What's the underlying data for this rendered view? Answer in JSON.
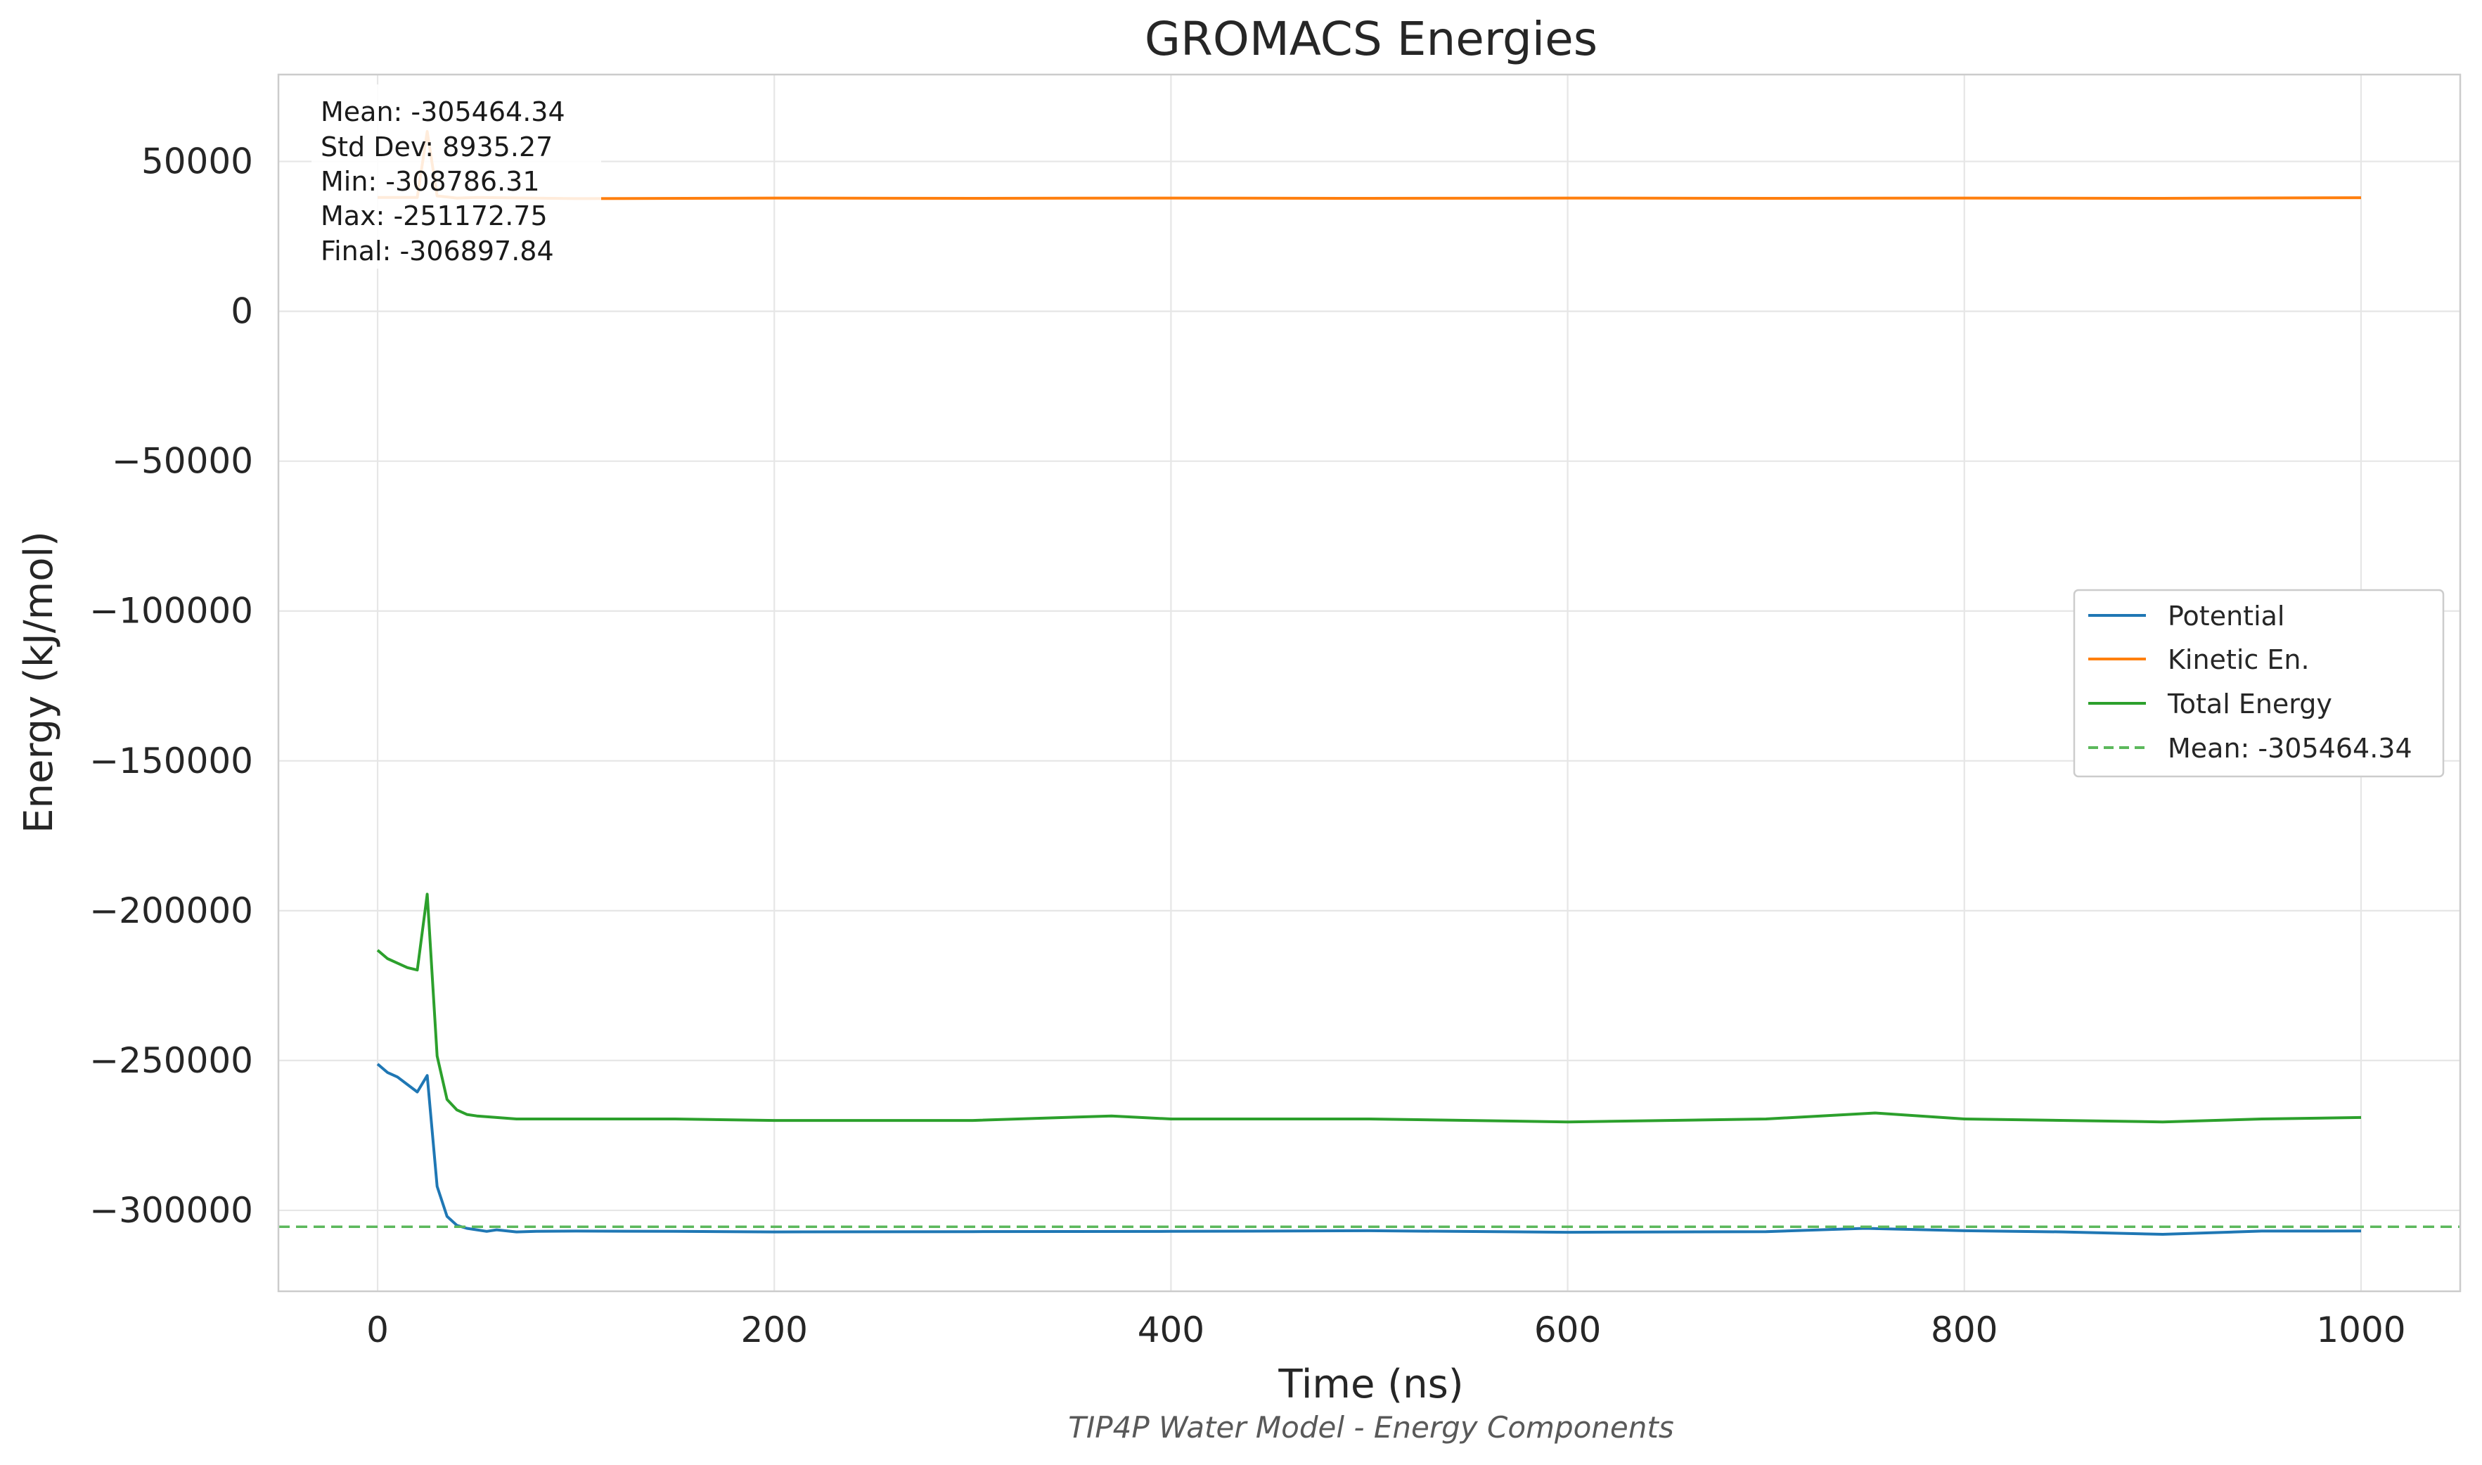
{
  "chart_data": {
    "type": "line",
    "title": "GROMACS Energies",
    "subtitle": "TIP4P Water Model - Energy Components",
    "xlabel": "Time (ns)",
    "ylabel": "Energy (kJ/mol)",
    "xlim": [
      -50,
      1050
    ],
    "ylim": [
      -327000,
      79000
    ],
    "x_ticks": [
      0,
      200,
      400,
      600,
      800,
      1000
    ],
    "x_tick_labels": [
      "0",
      "200",
      "400",
      "600",
      "800",
      "1000"
    ],
    "y_ticks": [
      50000,
      0,
      -50000,
      -100000,
      -150000,
      -200000,
      -250000,
      -300000
    ],
    "y_tick_labels": [
      "50000",
      "0",
      "−50000",
      "−100000",
      "−150000",
      "−200000",
      "−250000",
      "−300000"
    ],
    "grid": true,
    "legend_position": "center-right",
    "stats_box": {
      "position": "top-left",
      "lines": [
        "Mean: -305464.34",
        "Std Dev: 8935.27",
        "Min: -308786.31",
        "Max: -251172.75",
        "Final: -306897.84"
      ]
    },
    "series": [
      {
        "name": "Potential",
        "color": "#1f77b4",
        "x": [
          0,
          5,
          10,
          15,
          20,
          25,
          30,
          35,
          40,
          45,
          50,
          55,
          60,
          70,
          80,
          100,
          150,
          200,
          300,
          400,
          500,
          600,
          700,
          750,
          800,
          850,
          900,
          950,
          1000
        ],
        "y": [
          -251173,
          -254000,
          -255500,
          -258000,
          -260500,
          -255000,
          -292000,
          -302000,
          -305000,
          -306000,
          -306500,
          -307000,
          -306500,
          -307200,
          -307000,
          -306900,
          -307000,
          -307200,
          -307100,
          -307000,
          -306800,
          -307300,
          -307100,
          -306000,
          -306800,
          -307200,
          -308000,
          -306900,
          -306898
        ]
      },
      {
        "name": "Kinetic En.",
        "color": "#ff7f0e",
        "x": [
          0,
          20,
          25,
          30,
          40,
          50,
          100,
          200,
          300,
          400,
          500,
          600,
          700,
          800,
          900,
          1000
        ],
        "y": [
          38000,
          38000,
          60000,
          38500,
          37800,
          38000,
          37600,
          37800,
          37700,
          37800,
          37700,
          37800,
          37700,
          37800,
          37700,
          37900
        ]
      },
      {
        "name": "Total Energy",
        "color": "#2ca02c",
        "x": [
          0,
          5,
          10,
          15,
          20,
          25,
          30,
          35,
          40,
          45,
          50,
          60,
          70,
          100,
          150,
          200,
          300,
          370,
          400,
          500,
          600,
          700,
          755,
          800,
          900,
          950,
          1000
        ],
        "y": [
          -213173,
          -216000,
          -217500,
          -219000,
          -219800,
          -194500,
          -248500,
          -263000,
          -266500,
          -268000,
          -268500,
          -269000,
          -269500,
          -269500,
          -269500,
          -270000,
          -270000,
          -268500,
          -269500,
          -269500,
          -270500,
          -269500,
          -267500,
          -269500,
          -270500,
          -269500,
          -269000
        ]
      },
      {
        "name": "Mean: -305464.34",
        "color": "#2ca02c",
        "style": "dashed",
        "x": [
          -50,
          1050
        ],
        "y": [
          -305464.34,
          -305464.34
        ]
      }
    ]
  }
}
